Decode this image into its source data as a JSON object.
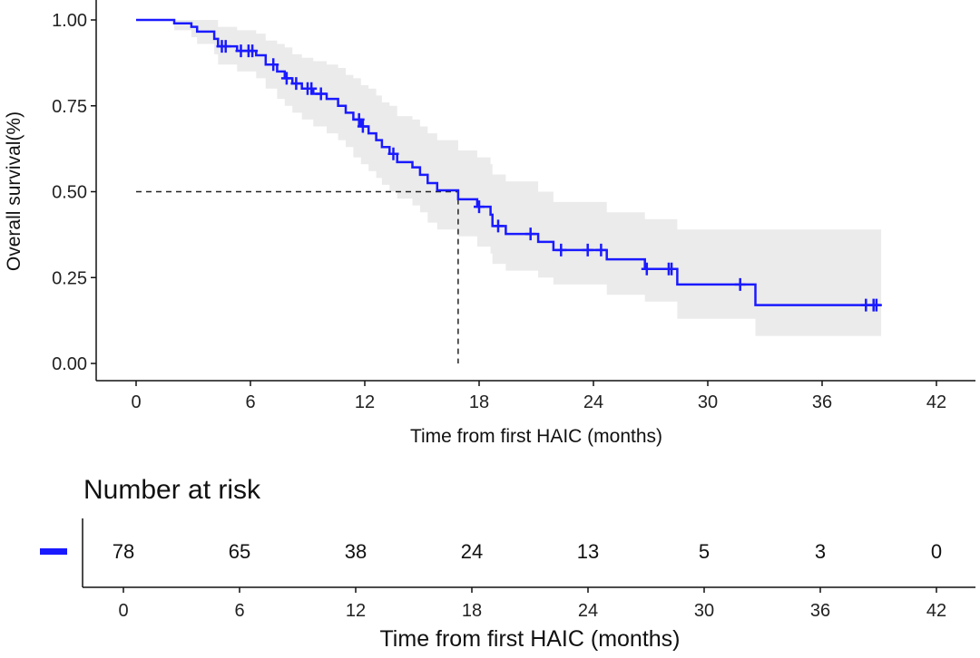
{
  "chart_data": {
    "type": "line",
    "subtype": "kaplan-meier",
    "xlabel": "Time from first HAIC (months)",
    "ylabel": "Overall survival(%)",
    "xlim": [
      0,
      42
    ],
    "ylim": [
      0,
      1
    ],
    "xticks": [
      "0",
      "6",
      "12",
      "18",
      "24",
      "30",
      "36",
      "42"
    ],
    "yticks": [
      "0.00",
      "0.25",
      "0.50",
      "0.75",
      "1.00"
    ],
    "grid": false,
    "colors": {
      "curve": "#1a1aff",
      "ci": "#ebebeb",
      "median": "#222222"
    },
    "steps": [
      [
        0,
        1
      ],
      [
        2.0,
        0.99
      ],
      [
        2.9,
        0.98
      ],
      [
        3.2,
        0.966
      ],
      [
        4.1,
        0.945
      ],
      [
        4.3,
        0.923
      ],
      [
        5.3,
        0.91
      ],
      [
        6.3,
        0.897
      ],
      [
        6.8,
        0.87
      ],
      [
        7.4,
        0.85
      ],
      [
        7.8,
        0.83
      ],
      [
        8.2,
        0.815
      ],
      [
        8.7,
        0.8
      ],
      [
        9.3,
        0.785
      ],
      [
        10.0,
        0.77
      ],
      [
        10.6,
        0.75
      ],
      [
        11.0,
        0.73
      ],
      [
        11.4,
        0.71
      ],
      [
        11.8,
        0.69
      ],
      [
        12.2,
        0.67
      ],
      [
        12.6,
        0.65
      ],
      [
        12.9,
        0.63
      ],
      [
        13.3,
        0.61
      ],
      [
        13.7,
        0.586
      ],
      [
        14.5,
        0.571
      ],
      [
        14.9,
        0.549
      ],
      [
        15.3,
        0.525
      ],
      [
        15.8,
        0.504
      ],
      [
        16.9,
        0.478
      ],
      [
        17.9,
        0.456
      ],
      [
        18.6,
        0.433
      ],
      [
        18.7,
        0.4
      ],
      [
        19.4,
        0.377
      ],
      [
        21.1,
        0.354
      ],
      [
        21.9,
        0.33
      ],
      [
        24.7,
        0.303
      ],
      [
        26.7,
        0.275
      ],
      [
        28.4,
        0.23
      ],
      [
        32.5,
        0.17
      ]
    ],
    "end_time": 39.1,
    "ci_lower": [
      1,
      0.97,
      0.95,
      0.93,
      0.9,
      0.87,
      0.85,
      0.83,
      0.8,
      0.77,
      0.75,
      0.73,
      0.71,
      0.69,
      0.67,
      0.65,
      0.63,
      0.6,
      0.58,
      0.56,
      0.54,
      0.52,
      0.5,
      0.48,
      0.46,
      0.44,
      0.41,
      0.39,
      0.37,
      0.34,
      0.32,
      0.29,
      0.27,
      0.25,
      0.23,
      0.2,
      0.18,
      0.13,
      0.08
    ],
    "ci_upper": [
      1,
      1,
      1,
      1,
      1,
      0.98,
      0.97,
      0.96,
      0.94,
      0.93,
      0.92,
      0.9,
      0.89,
      0.88,
      0.87,
      0.86,
      0.84,
      0.83,
      0.81,
      0.8,
      0.78,
      0.76,
      0.75,
      0.72,
      0.71,
      0.69,
      0.67,
      0.65,
      0.62,
      0.6,
      0.58,
      0.55,
      0.53,
      0.5,
      0.47,
      0.44,
      0.42,
      0.39,
      0.39
    ],
    "censored": [
      [
        4.5,
        0.923
      ],
      [
        4.7,
        0.923
      ],
      [
        5.5,
        0.91
      ],
      [
        5.9,
        0.91
      ],
      [
        6.1,
        0.91
      ],
      [
        7.2,
        0.87
      ],
      [
        7.9,
        0.83
      ],
      [
        8.4,
        0.815
      ],
      [
        9.0,
        0.8
      ],
      [
        9.2,
        0.8
      ],
      [
        9.7,
        0.785
      ],
      [
        11.7,
        0.71
      ],
      [
        11.9,
        0.69
      ],
      [
        13.5,
        0.61
      ],
      [
        18.0,
        0.456
      ],
      [
        19.0,
        0.4
      ],
      [
        20.7,
        0.377
      ],
      [
        22.3,
        0.33
      ],
      [
        23.7,
        0.33
      ],
      [
        24.4,
        0.33
      ],
      [
        26.8,
        0.275
      ],
      [
        27.95,
        0.275
      ],
      [
        28.1,
        0.275
      ],
      [
        31.7,
        0.23
      ],
      [
        38.3,
        0.17
      ],
      [
        38.7,
        0.17
      ],
      [
        38.85,
        0.17
      ]
    ],
    "median": 16.9,
    "risk_table": {
      "title": "Number at risk",
      "times": [
        0,
        6,
        12,
        18,
        24,
        30,
        36,
        42
      ],
      "counts": [
        "78",
        "65",
        "38",
        "24",
        "13",
        "5",
        "3",
        "0"
      ],
      "xticks": [
        "0",
        "6",
        "12",
        "18",
        "24",
        "30",
        "36",
        "42"
      ],
      "xlabel": "Time from first HAIC (months)"
    }
  }
}
